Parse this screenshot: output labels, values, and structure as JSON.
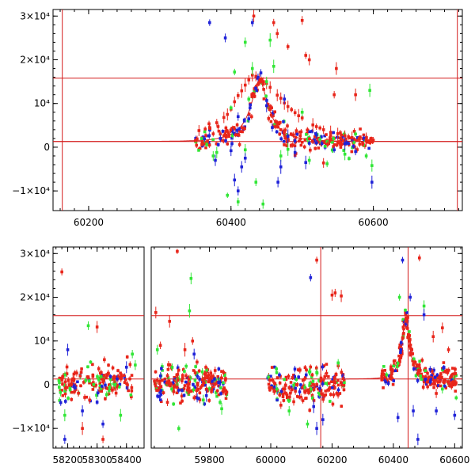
{
  "colors": {
    "red": "#e8251a",
    "green": "#31e636",
    "blue": "#1f22d8",
    "frame": "#000000",
    "model": "#d41a1a"
  },
  "chart_data": [
    {
      "id": "top",
      "type": "scatter",
      "title": "",
      "xlabel": "",
      "ylabel": "",
      "xlim": [
        60150,
        60725
      ],
      "ylim": [
        -14500,
        31500
      ],
      "xticks": [
        {
          "value": 60200,
          "label": "60200"
        },
        {
          "value": 60400,
          "label": "60400"
        },
        {
          "value": 60600,
          "label": "60600"
        }
      ],
      "yticks": [
        {
          "value": -10000,
          "label": "−1×10⁴"
        },
        {
          "value": 0,
          "label": "0"
        },
        {
          "value": 10000,
          "label": "10⁴"
        },
        {
          "value": 20000,
          "label": "2×10⁴"
        },
        {
          "value": 30000,
          "label": "3×10⁴"
        }
      ],
      "hlines": [
        15800,
        1300
      ],
      "vlines": [
        60163,
        60718
      ],
      "model": {
        "t0": 60440,
        "baseline": 1300,
        "peak": 14000,
        "tE": 40
      },
      "series": [
        {
          "color_key": "red",
          "errors": true,
          "points": [
            [
              60355,
              3800
            ],
            [
              60370,
              4500
            ],
            [
              60380,
              5600
            ],
            [
              60390,
              6800
            ],
            [
              60395,
              7500
            ],
            [
              60400,
              8700
            ],
            [
              60405,
              10400
            ],
            [
              60410,
              11800
            ],
            [
              60415,
              12900
            ],
            [
              60420,
              14200
            ],
            [
              60425,
              15400
            ],
            [
              60430,
              16500
            ],
            [
              60432,
              30000
            ],
            [
              60435,
              16200
            ],
            [
              60440,
              15600
            ],
            [
              60445,
              15000
            ],
            [
              60450,
              14600
            ],
            [
              60455,
              13700
            ],
            [
              60460,
              28500
            ],
            [
              60465,
              11900
            ],
            [
              60470,
              11200
            ],
            [
              60475,
              10100
            ],
            [
              60480,
              9300
            ],
            [
              60485,
              8600
            ],
            [
              60490,
              7900
            ],
            [
              60495,
              7200
            ],
            [
              60500,
              6700
            ],
            [
              60505,
              21000
            ],
            [
              60510,
              20000
            ],
            [
              60515,
              5100
            ],
            [
              60520,
              4700
            ],
            [
              60525,
              4400
            ],
            [
              60530,
              4000
            ],
            [
              60540,
              3400
            ],
            [
              60545,
              12000
            ],
            [
              60550,
              3100
            ],
            [
              60555,
              2800
            ],
            [
              60560,
              2600
            ],
            [
              60565,
              2400
            ],
            [
              60570,
              2200
            ],
            [
              60575,
              12000
            ],
            [
              60580,
              2000
            ],
            [
              60590,
              1800
            ],
            [
              60600,
              1600
            ],
            [
              60548,
              18000
            ],
            [
              60465,
              26000
            ],
            [
              60480,
              23000
            ],
            [
              60500,
              29000
            ],
            [
              60530,
              -3600
            ],
            [
              60385,
              3000
            ]
          ]
        },
        {
          "color_key": "green",
          "errors": true,
          "points": [
            [
              60375,
              -2000
            ],
            [
              60380,
              -1200
            ],
            [
              60400,
              9000
            ],
            [
              60405,
              17200
            ],
            [
              60410,
              -12500
            ],
            [
              60420,
              24000
            ],
            [
              60425,
              11000
            ],
            [
              60430,
              18000
            ],
            [
              60435,
              -8000
            ],
            [
              60450,
              15000
            ],
            [
              60455,
              24500
            ],
            [
              60460,
              18500
            ],
            [
              60470,
              -2000
            ],
            [
              60480,
              -500
            ],
            [
              60500,
              8000
            ],
            [
              60510,
              -3000
            ],
            [
              60525,
              1800
            ],
            [
              60535,
              -3800
            ],
            [
              60560,
              -1600
            ],
            [
              60575,
              3000
            ],
            [
              60590,
              -2000
            ],
            [
              60595,
              13000
            ],
            [
              60598,
              -4200
            ],
            [
              60420,
              -600
            ],
            [
              60445,
              -13000
            ],
            [
              60395,
              -11000
            ]
          ]
        },
        {
          "color_key": "blue",
          "errors": true,
          "points": [
            [
              60370,
              28500
            ],
            [
              60378,
              -3000
            ],
            [
              60385,
              2000
            ],
            [
              60392,
              25000
            ],
            [
              60400,
              -800
            ],
            [
              60405,
              -7500
            ],
            [
              60410,
              7000
            ],
            [
              60420,
              -2500
            ],
            [
              60425,
              6500
            ],
            [
              60430,
              28500
            ],
            [
              60438,
              16000
            ],
            [
              60442,
              17000
            ],
            [
              60450,
              9500
            ],
            [
              60458,
              4500
            ],
            [
              60466,
              -8000
            ],
            [
              60470,
              -4500
            ],
            [
              60475,
              11000
            ],
            [
              60480,
              2500
            ],
            [
              60490,
              -1200
            ],
            [
              60505,
              -3500
            ],
            [
              60520,
              2800
            ],
            [
              60545,
              -600
            ],
            [
              60560,
              800
            ],
            [
              60575,
              -1000
            ],
            [
              60598,
              -8000
            ],
            [
              60415,
              -4500
            ],
            [
              60410,
              -10000
            ]
          ]
        }
      ]
    },
    {
      "id": "bottom",
      "type": "scatter",
      "title": "",
      "xlabel": "",
      "ylabel": "",
      "ylim": [
        -14500,
        31500
      ],
      "segments": [
        {
          "xlim": [
            58150,
            58460
          ]
        },
        {
          "xlim": [
            59610,
            60625
          ]
        }
      ],
      "xticks": [
        {
          "value": 58200,
          "label": "58200"
        },
        {
          "value": 58300,
          "label": "58300"
        },
        {
          "value": 58400,
          "label": "58400"
        },
        {
          "value": 59800,
          "label": "59800"
        },
        {
          "value": 60000,
          "label": "60000"
        },
        {
          "value": 60200,
          "label": "60200"
        },
        {
          "value": 60400,
          "label": "60400"
        },
        {
          "value": 60600,
          "label": "60600"
        }
      ],
      "yticks": [
        {
          "value": -10000,
          "label": "−1×10⁴"
        },
        {
          "value": 0,
          "label": "0"
        },
        {
          "value": 10000,
          "label": "10⁴"
        },
        {
          "value": 20000,
          "label": "2×10⁴"
        },
        {
          "value": 30000,
          "label": "3×10⁴"
        }
      ],
      "hlines": [
        15800,
        1300
      ],
      "vlines": [
        60163,
        60448
      ],
      "model": {
        "t0": 60440,
        "baseline": 1300,
        "peak": 14000,
        "tE": 40
      },
      "clusters": [
        {
          "x_range": [
            58170,
            58420
          ],
          "center": 500,
          "spread": 1800,
          "count": 180
        },
        {
          "x_range": [
            59620,
            59860
          ],
          "center": 300,
          "spread": 2000,
          "count": 220
        },
        {
          "x_range": [
            59990,
            60240
          ],
          "center": 0,
          "spread": 2000,
          "count": 200
        }
      ],
      "series": [
        {
          "color_key": "red",
          "errors": true,
          "points": [
            [
              58180,
              25800
            ],
            [
              58300,
              13200
            ],
            [
              58320,
              -12500
            ],
            [
              58250,
              -10000
            ],
            [
              59625,
              16500
            ],
            [
              59640,
              9000
            ],
            [
              59670,
              14500
            ],
            [
              59695,
              30500
            ],
            [
              59720,
              8000
            ],
            [
              59745,
              10000
            ],
            [
              60150,
              28500
            ],
            [
              60200,
              20500
            ],
            [
              60210,
              21000
            ],
            [
              60230,
              20300
            ],
            [
              60485,
              29000
            ],
            [
              60530,
              11000
            ],
            [
              60560,
              13000
            ],
            [
              60540,
              -2000
            ],
            [
              60600,
              2500
            ],
            [
              60580,
              8000
            ]
          ]
        },
        {
          "color_key": "green",
          "errors": true,
          "points": [
            [
              58270,
              13500
            ],
            [
              58190,
              -7000
            ],
            [
              58380,
              -7000
            ],
            [
              58420,
              7000
            ],
            [
              58430,
              4500
            ],
            [
              59740,
              24300
            ],
            [
              59735,
              16900
            ],
            [
              59630,
              8000
            ],
            [
              59700,
              -10000
            ],
            [
              59780,
              -3500
            ],
            [
              59840,
              -5500
            ],
            [
              60020,
              -1000
            ],
            [
              60060,
              -6000
            ],
            [
              60120,
              -9000
            ],
            [
              60150,
              2800
            ],
            [
              60220,
              5000
            ],
            [
              60420,
              20000
            ],
            [
              60500,
              18000
            ],
            [
              60560,
              -1000
            ],
            [
              60605,
              -3000
            ]
          ]
        },
        {
          "color_key": "blue",
          "errors": true,
          "points": [
            [
              58190,
              -12500
            ],
            [
              58200,
              8000
            ],
            [
              58250,
              -6000
            ],
            [
              58300,
              -4000
            ],
            [
              58320,
              -9000
            ],
            [
              58400,
              4000
            ],
            [
              59750,
              7000
            ],
            [
              59760,
              -3000
            ],
            [
              59790,
              -2500
            ],
            [
              59830,
              500
            ],
            [
              60130,
              24500
            ],
            [
              60140,
              -5000
            ],
            [
              60150,
              -10000
            ],
            [
              60170,
              -8000
            ],
            [
              60430,
              28500
            ],
            [
              60455,
              20000
            ],
            [
              60480,
              -12500
            ],
            [
              60500,
              16000
            ],
            [
              60520,
              3500
            ],
            [
              60540,
              -6000
            ],
            [
              60600,
              -7000
            ],
            [
              60415,
              -7500
            ],
            [
              60465,
              -6000
            ]
          ]
        }
      ]
    }
  ]
}
